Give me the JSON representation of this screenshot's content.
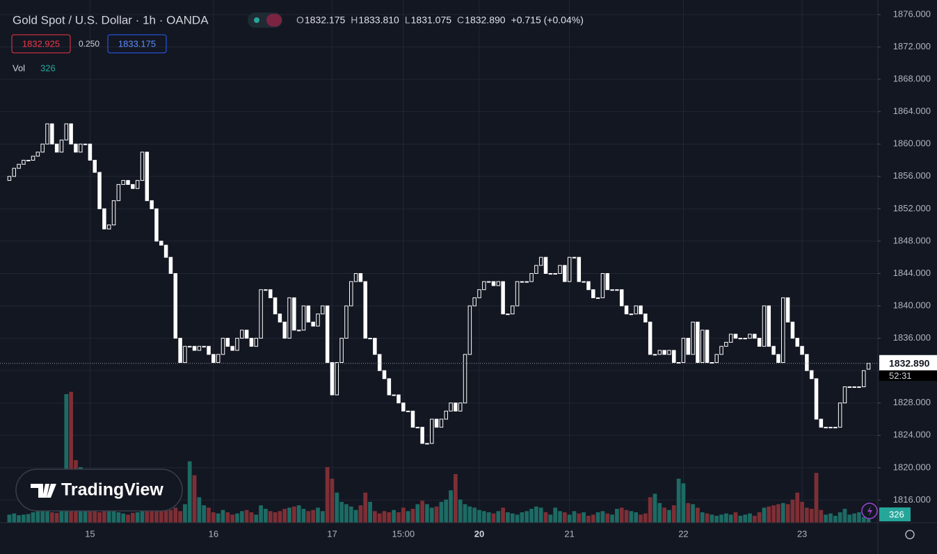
{
  "chart_data": {
    "type": "candlestick",
    "title": "Gold Spot / U.S. Dollar · 1h · OANDA",
    "ohlc_legend": [
      {
        "key": "O",
        "value": "1832.175"
      },
      {
        "key": "H",
        "value": "1833.810"
      },
      {
        "key": "L",
        "value": "1831.075"
      },
      {
        "key": "C",
        "value": "1832.890"
      }
    ],
    "change": "+0.715 (+0.04%)",
    "bid": "1832.925",
    "spread": "0.250",
    "ask": "1833.175",
    "volume_label": "Vol",
    "price_tag": "1832.890",
    "countdown": "52:31",
    "logo": "TradingView",
    "up_color": "#ffffff",
    "down_color": "#ffffff",
    "volume_up_color": "#1d6b64",
    "volume_down_color": "#7e2f35",
    "ylim": [
      1813.2,
      1877.8
    ],
    "yticks": [
      {
        "value": 1816,
        "label": "1816.000"
      },
      {
        "value": 1820,
        "label": "1820.000"
      },
      {
        "value": 1824,
        "label": "1824.000"
      },
      {
        "value": 1828,
        "label": "1828.000"
      },
      {
        "value": 1832,
        "label": "1832.000"
      },
      {
        "value": 1836,
        "label": "1836.000"
      },
      {
        "value": 1840,
        "label": "1840.000"
      },
      {
        "value": 1844,
        "label": "1844.000"
      },
      {
        "value": 1848,
        "label": "1848.000"
      },
      {
        "value": 1852,
        "label": "1852.000"
      },
      {
        "value": 1856,
        "label": "1856.000"
      },
      {
        "value": 1860,
        "label": "1860.000"
      },
      {
        "value": 1864,
        "label": "1864.000"
      },
      {
        "value": 1868,
        "label": "1868.000"
      },
      {
        "value": 1872,
        "label": "1872.000"
      },
      {
        "value": 1876,
        "label": "1876.000"
      }
    ],
    "volume_lim": [
      0,
      12000
    ],
    "grid": true,
    "categories": [
      null,
      null,
      null,
      null,
      null,
      null,
      null,
      null,
      null,
      null,
      null,
      null,
      null,
      null,
      null,
      null,
      null,
      "15",
      null,
      null,
      null,
      null,
      null,
      null,
      null,
      null,
      null,
      null,
      null,
      null,
      null,
      null,
      null,
      null,
      null,
      null,
      null,
      null,
      null,
      null,
      null,
      null,
      null,
      "16",
      null,
      null,
      null,
      null,
      null,
      null,
      null,
      null,
      null,
      null,
      null,
      null,
      null,
      null,
      null,
      null,
      null,
      null,
      null,
      null,
      null,
      null,
      null,
      null,
      "17",
      null,
      null,
      null,
      null,
      null,
      null,
      null,
      null,
      null,
      null,
      null,
      null,
      null,
      null,
      "15:00",
      null,
      null,
      null,
      null,
      null,
      null,
      null,
      null,
      null,
      null,
      null,
      null,
      null,
      null,
      null,
      "20",
      null,
      null,
      null,
      null,
      null,
      null,
      null,
      null,
      null,
      null,
      null,
      null,
      null,
      null,
      null,
      null,
      null,
      null,
      "21",
      null,
      null,
      null,
      null,
      null,
      null,
      null,
      null,
      null,
      null,
      null,
      null,
      null,
      null,
      null,
      null,
      null,
      null,
      null,
      null,
      null,
      null,
      null,
      "22",
      null,
      null,
      null,
      null,
      null,
      null,
      null,
      null,
      null,
      null,
      null,
      null,
      null,
      null,
      null,
      null,
      null,
      null,
      null,
      null,
      null,
      null,
      null,
      null,
      "23",
      null,
      null,
      null,
      null,
      null,
      null,
      null,
      null,
      null,
      null,
      null,
      null,
      null,
      null
    ],
    "open": [
      1855.5,
      1856,
      1857,
      1857.5,
      1858,
      1858,
      1858.5,
      1859,
      1860,
      1862.5,
      1860,
      1859,
      1860.5,
      1862.5,
      1860,
      1859,
      1860,
      1860,
      1858,
      1856.5,
      1852,
      1849.5,
      1850,
      1853,
      1855,
      1855.5,
      1855,
      1854.5,
      1855.5,
      1859,
      1853,
      1852,
      1848,
      1847.5,
      1846,
      1844,
      1836,
      1833,
      1835,
      1835,
      1834.5,
      1835,
      1835,
      1834,
      1833,
      1834,
      1836,
      1835,
      1834.5,
      1836,
      1837,
      1836,
      1835,
      1836,
      1842,
      1842,
      1841,
      1839,
      1838,
      1836,
      1841,
      1837,
      1837,
      1840,
      1838,
      1837.5,
      1839,
      1840,
      1833,
      1829,
      1833,
      1836,
      1840,
      1843,
      1844,
      1843,
      1836,
      1836,
      1834,
      1832,
      1831,
      1829,
      1829,
      1828,
      1827,
      1827,
      1825,
      1825,
      1823,
      1823,
      1826,
      1825,
      1826,
      1827,
      1828,
      1827,
      1828,
      1834,
      1840,
      1841,
      1842,
      1843,
      1843,
      1842.5,
      1843,
      1839,
      1839,
      1840,
      1843,
      1843,
      1843,
      1844,
      1845,
      1846,
      1844,
      1844,
      1844,
      1845,
      1843,
      1846,
      1846,
      1843,
      1843,
      1842,
      1841,
      1841,
      1844,
      1842,
      1842,
      1842,
      1840,
      1839,
      1839,
      1840,
      1839,
      1838,
      1834,
      1834,
      1834.5,
      1834,
      1834.5,
      1833,
      1833,
      1836,
      1834,
      1838,
      1833,
      1837,
      1833,
      1833,
      1834,
      1835,
      1835.5,
      1836.5,
      1836,
      1836,
      1836,
      1836.5,
      1836,
      1835,
      1840,
      1835,
      1834,
      1833,
      1841,
      1838,
      1836,
      1835,
      1834,
      1832,
      1831,
      1826,
      1825,
      1825,
      1825,
      1825,
      1828,
      1830,
      1830,
      1830,
      1830,
      1832.175
    ],
    "close": [
      1856,
      1857,
      1857.5,
      1858,
      1858,
      1858.5,
      1859,
      1860,
      1862.5,
      1860,
      1859,
      1860.5,
      1862.5,
      1860,
      1859,
      1860,
      1860,
      1858,
      1856.5,
      1852,
      1849.5,
      1850,
      1853,
      1855,
      1855.5,
      1855,
      1854.5,
      1855.5,
      1859,
      1853,
      1852,
      1848,
      1847.5,
      1846,
      1844,
      1836,
      1833,
      1835,
      1835,
      1834.5,
      1835,
      1835,
      1834,
      1833,
      1834,
      1836,
      1835,
      1834.5,
      1836,
      1837,
      1836,
      1835,
      1836,
      1842,
      1842,
      1841,
      1839,
      1838,
      1836,
      1841,
      1837,
      1837,
      1840,
      1838,
      1837.5,
      1839,
      1840,
      1833,
      1829,
      1833,
      1836,
      1840,
      1843,
      1844,
      1843,
      1836,
      1836,
      1834,
      1832,
      1831,
      1829,
      1829,
      1828,
      1827,
      1827,
      1825,
      1825,
      1823,
      1823,
      1826,
      1825,
      1826,
      1827,
      1828,
      1827,
      1828,
      1834,
      1840,
      1841,
      1842,
      1843,
      1843,
      1842.5,
      1843,
      1839,
      1839,
      1840,
      1843,
      1843,
      1843,
      1844,
      1845,
      1846,
      1844,
      1844,
      1844,
      1845,
      1843,
      1846,
      1846,
      1843,
      1843,
      1842,
      1841,
      1841,
      1844,
      1842,
      1842,
      1842,
      1840,
      1839,
      1839,
      1840,
      1839,
      1838,
      1834,
      1834,
      1834.5,
      1834,
      1834.5,
      1833,
      1833,
      1836,
      1834,
      1838,
      1833,
      1837,
      1833,
      1833,
      1834,
      1835,
      1835.5,
      1836.5,
      1836,
      1836,
      1836,
      1836.5,
      1836,
      1835,
      1840,
      1835,
      1834,
      1833,
      1841,
      1838,
      1836,
      1835,
      1834,
      1832,
      1831,
      1826,
      1825,
      1825,
      1825,
      1825,
      1828,
      1830,
      1830,
      1830,
      1830,
      1832,
      1832.89
    ],
    "volume": [
      700,
      800,
      650,
      700,
      750,
      900,
      1100,
      1300,
      1000,
      900,
      850,
      1200,
      11100,
      11300,
      5400,
      4800,
      3900,
      1800,
      1300,
      900,
      1500,
      1200,
      1000,
      900,
      800,
      700,
      850,
      900,
      1500,
      1300,
      1200,
      1100,
      1000,
      1200,
      1100,
      1300,
      1000,
      1600,
      5300,
      4100,
      2200,
      1500,
      1300,
      900,
      800,
      1100,
      900,
      700,
      800,
      1000,
      1100,
      900,
      700,
      1500,
      1200,
      1000,
      900,
      1000,
      1200,
      1300,
      1400,
      1500,
      1200,
      1000,
      1100,
      1300,
      1000,
      4800,
      3800,
      2600,
      1800,
      1600,
      1400,
      1100,
      1500,
      2600,
      1800,
      1000,
      800,
      1000,
      900,
      1100,
      900,
      1300,
      1000,
      1200,
      1600,
      1900,
      1600,
      1300,
      1400,
      1800,
      2000,
      2800,
      4200,
      2000,
      1600,
      1400,
      1300,
      1100,
      1000,
      900,
      800,
      1000,
      1300,
      900,
      800,
      700,
      900,
      1000,
      1200,
      1400,
      1300,
      900,
      700,
      1300,
      1000,
      900,
      700,
      1000,
      800,
      900,
      600,
      700,
      900,
      1000,
      800,
      700,
      1200,
      1300,
      1100,
      1000,
      900,
      700,
      800,
      2200,
      2500,
      1700,
      1300,
      1100,
      1500,
      3800,
      3400,
      1700,
      1600,
      1300,
      900,
      800,
      700,
      600,
      700,
      800,
      700,
      900,
      600,
      700,
      800,
      600,
      900,
      1300,
      1400,
      1500,
      1600,
      1700,
      1600,
      2000,
      2600,
      1800,
      1300,
      1200,
      4300,
      1100,
      700,
      800,
      600,
      900,
      1200,
      700,
      800,
      900,
      500,
      326
    ]
  }
}
